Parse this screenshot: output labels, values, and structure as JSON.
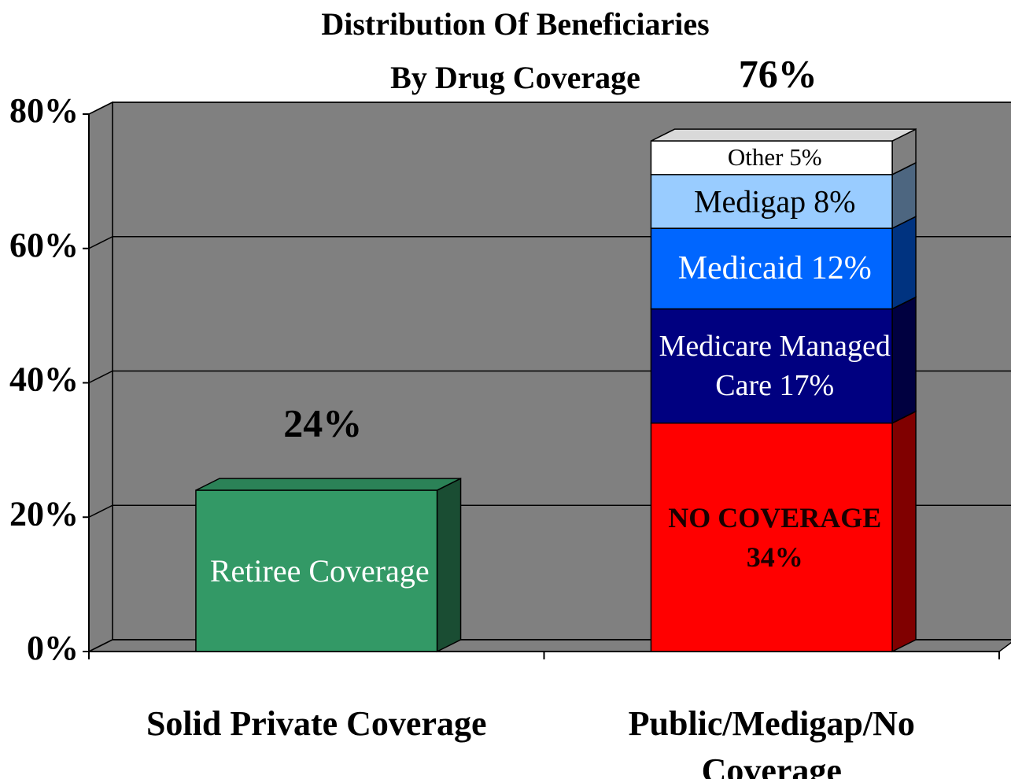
{
  "chart_data": {
    "type": "stacked_bar_3d",
    "title": [
      "Distribution Of Beneficiaries",
      "By Drug Coverage"
    ],
    "categories": [
      "Solid Private Coverage",
      "Public/Medigap/No Coverage"
    ],
    "series": [
      {
        "name": "Retiree Coverage",
        "color": "#339966",
        "values": [
          24,
          null
        ]
      },
      {
        "name": "NO COVERAGE",
        "color": "#ff0000",
        "values": [
          null,
          34
        ],
        "value_labels": [
          null,
          "34%"
        ]
      },
      {
        "name": "Medicare Managed Care",
        "color": "#000080",
        "values": [
          null,
          17
        ],
        "value_labels": [
          null,
          "17%"
        ]
      },
      {
        "name": "Medicaid",
        "color": "#0066ff",
        "values": [
          null,
          12
        ],
        "value_labels": [
          null,
          "12%"
        ]
      },
      {
        "name": "Medigap",
        "color": "#99ccff",
        "values": [
          null,
          8
        ],
        "value_labels": [
          null,
          "8%"
        ]
      },
      {
        "name": "Other",
        "color": "#ffffff",
        "values": [
          null,
          5
        ],
        "value_labels": [
          null,
          "5%"
        ]
      }
    ],
    "totals": [
      24,
      76
    ],
    "total_labels": [
      "24%",
      "76%"
    ],
    "ylim": [
      0,
      80
    ],
    "yticks": [
      {
        "value": 0,
        "label": "0%"
      },
      {
        "value": 20,
        "label": "20%"
      },
      {
        "value": 40,
        "label": "40%"
      },
      {
        "value": 60,
        "label": "60%"
      },
      {
        "value": 80,
        "label": "80%"
      }
    ],
    "grid": true,
    "background": "#808080"
  }
}
